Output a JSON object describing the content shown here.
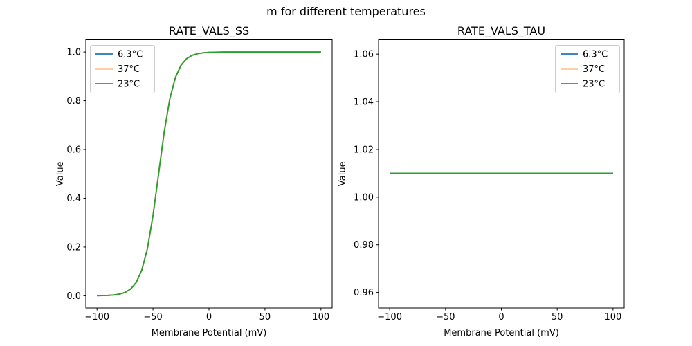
{
  "suptitle": "m for different temperatures",
  "palette": {
    "blue": "#1f77b4",
    "orange": "#ff7f0e",
    "green": "#2ca02c",
    "spine": "#000000",
    "legend_edge": "#cccccc"
  },
  "chart_data": [
    {
      "id": "ss",
      "type": "line",
      "title": "RATE_VALS_SS",
      "xlabel": "Membrane Potential (mV)",
      "ylabel": "Value",
      "xlim": [
        -110,
        110
      ],
      "ylim": [
        -0.05,
        1.05
      ],
      "grid": false,
      "xticks": {
        "values": [
          -100,
          -50,
          0,
          50,
          100
        ],
        "labels": [
          "−100",
          "−50",
          "0",
          "50",
          "100"
        ]
      },
      "yticks": {
        "values": [
          0.0,
          0.2,
          0.4,
          0.6,
          0.8,
          1.0
        ],
        "labels": [
          "0.0",
          "0.2",
          "0.4",
          "0.6",
          "0.8",
          "1.0"
        ]
      },
      "legend": {
        "loc": "upper left",
        "entries": [
          "6.3°C",
          "37°C",
          "23°C"
        ]
      },
      "x": [
        -100,
        -95,
        -90,
        -85,
        -80,
        -75,
        -70,
        -65,
        -60,
        -55,
        -50,
        -45,
        -40,
        -35,
        -30,
        -25,
        -20,
        -15,
        -10,
        -5,
        0,
        5,
        10,
        15,
        20,
        25,
        30,
        35,
        40,
        45,
        50,
        55,
        60,
        65,
        70,
        75,
        80,
        85,
        90,
        95,
        100
      ],
      "series": [
        {
          "name": "6.3°C",
          "color": "#1f77b4",
          "y": [
            0.0004,
            0.0008,
            0.0016,
            0.0033,
            0.0067,
            0.0136,
            0.0273,
            0.0543,
            0.105,
            0.1933,
            0.3286,
            0.5,
            0.6714,
            0.8067,
            0.895,
            0.9457,
            0.9727,
            0.9864,
            0.9933,
            0.9967,
            0.9984,
            0.9992,
            0.9996,
            0.9998,
            0.9999,
            1.0,
            1.0,
            1.0,
            1.0,
            1.0,
            1.0,
            1.0,
            1.0,
            1.0,
            1.0,
            1.0,
            1.0,
            1.0,
            1.0,
            1.0,
            1.0
          ]
        },
        {
          "name": "37°C",
          "color": "#ff7f0e",
          "y": [
            0.0004,
            0.0008,
            0.0016,
            0.0033,
            0.0067,
            0.0136,
            0.0273,
            0.0543,
            0.105,
            0.1933,
            0.3286,
            0.5,
            0.6714,
            0.8067,
            0.895,
            0.9457,
            0.9727,
            0.9864,
            0.9933,
            0.9967,
            0.9984,
            0.9992,
            0.9996,
            0.9998,
            0.9999,
            1.0,
            1.0,
            1.0,
            1.0,
            1.0,
            1.0,
            1.0,
            1.0,
            1.0,
            1.0,
            1.0,
            1.0,
            1.0,
            1.0,
            1.0,
            1.0
          ]
        },
        {
          "name": "23°C",
          "color": "#2ca02c",
          "y": [
            0.0004,
            0.0008,
            0.0016,
            0.0033,
            0.0067,
            0.0136,
            0.0273,
            0.0543,
            0.105,
            0.1933,
            0.3286,
            0.5,
            0.6714,
            0.8067,
            0.895,
            0.9457,
            0.9727,
            0.9864,
            0.9933,
            0.9967,
            0.9984,
            0.9992,
            0.9996,
            0.9998,
            0.9999,
            1.0,
            1.0,
            1.0,
            1.0,
            1.0,
            1.0,
            1.0,
            1.0,
            1.0,
            1.0,
            1.0,
            1.0,
            1.0,
            1.0,
            1.0,
            1.0
          ]
        }
      ]
    },
    {
      "id": "tau",
      "type": "line",
      "title": "RATE_VALS_TAU",
      "xlabel": "Membrane Potential (mV)",
      "ylabel": "Value",
      "xlim": [
        -110,
        110
      ],
      "ylim": [
        0.9535,
        1.066
      ],
      "grid": false,
      "xticks": {
        "values": [
          -100,
          -50,
          0,
          50,
          100
        ],
        "labels": [
          "−100",
          "−50",
          "0",
          "50",
          "100"
        ]
      },
      "yticks": {
        "values": [
          0.96,
          0.98,
          1.0,
          1.02,
          1.04,
          1.06
        ],
        "labels": [
          "0.96",
          "0.98",
          "1.00",
          "1.02",
          "1.04",
          "1.06"
        ]
      },
      "legend": {
        "loc": "upper right",
        "entries": [
          "6.3°C",
          "37°C",
          "23°C"
        ]
      },
      "x": [
        -100,
        100
      ],
      "series": [
        {
          "name": "6.3°C",
          "color": "#1f77b4",
          "y": [
            1.01,
            1.01
          ]
        },
        {
          "name": "37°C",
          "color": "#ff7f0e",
          "y": [
            1.01,
            1.01
          ]
        },
        {
          "name": "23°C",
          "color": "#2ca02c",
          "y": [
            1.01,
            1.01
          ]
        }
      ]
    }
  ]
}
